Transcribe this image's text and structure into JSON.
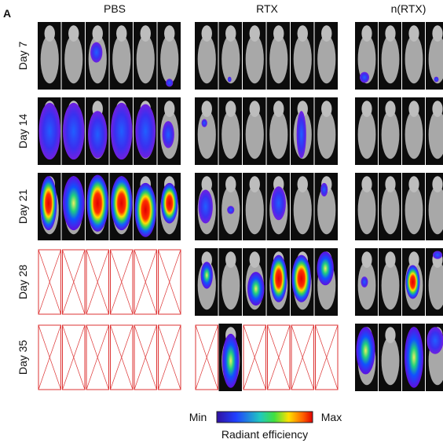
{
  "panel_label": "A",
  "groups": [
    "PBS",
    "RTX",
    "n(RTX)"
  ],
  "rows": [
    "Day 7",
    "Day 14",
    "Day 21",
    "Day 28",
    "Day 35"
  ],
  "colorbar": {
    "min_label": "Min",
    "max_label": "Max",
    "title": "Radiant efficiency"
  }
}
